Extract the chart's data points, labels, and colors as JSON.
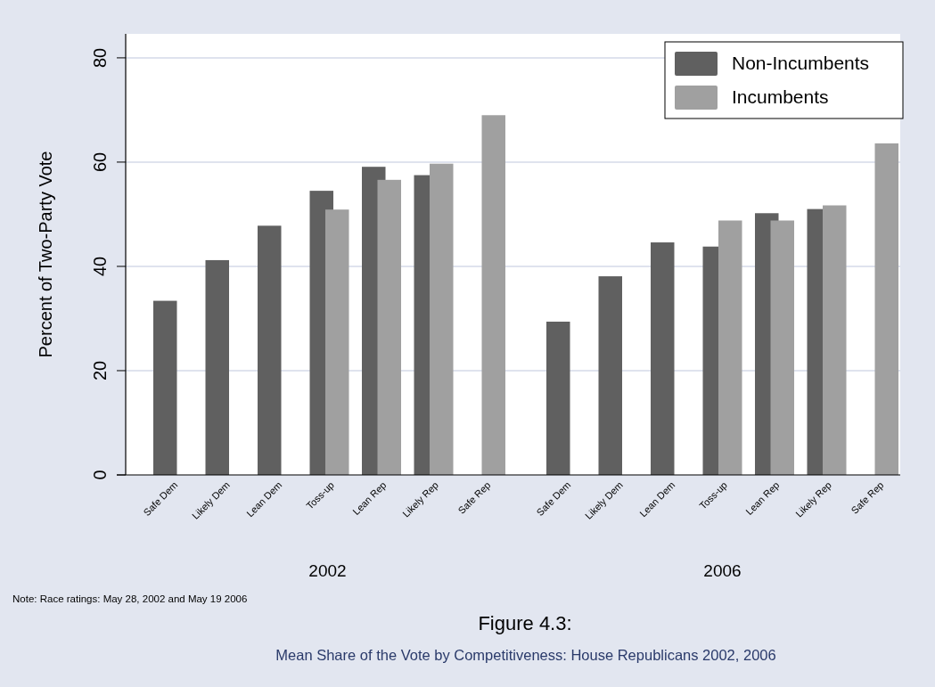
{
  "chart_data": [
    {
      "type": "bar",
      "title": "Figure 4.3:",
      "subtitle": "Mean Share of the Vote by Competitiveness: House Republicans 2002, 2006",
      "xlabel": "2002",
      "ylabel": "Percent of Two-Party Vote",
      "annotations": [
        "Note: Race ratings: May 28, 2002 and May 19 2006"
      ],
      "categories": [
        "Safe Dem",
        "Likely Dem",
        "Lean Dem",
        "Toss-up",
        "Lean Rep",
        "Likely Rep",
        "Safe Rep"
      ],
      "series": [
        {
          "color": "#606060",
          "values": [
            33.4,
            41.2,
            47.8,
            54.5,
            59.1,
            57.5,
            null
          ]
        },
        {
          "color": "#a0a0a0",
          "values": [
            null,
            null,
            null,
            50.9,
            56.6,
            59.7,
            69.0
          ]
        }
      ],
      "ylim": [
        0,
        84.6
      ],
      "yticks": [
        0,
        20,
        40,
        60,
        80
      ],
      "grid": "y"
    },
    {
      "type": "bar",
      "xlabel": "2006",
      "categories": [
        "Safe Dem",
        "Likely Dem",
        "Lean Dem",
        "Toss-up",
        "Lean Rep",
        "Likely Rep",
        "Safe Rep"
      ],
      "series": [
        {
          "name": "Non-Incumbents",
          "color": "#606060",
          "values": [
            29.4,
            38.1,
            44.6,
            43.8,
            50.2,
            51.0,
            null
          ]
        },
        {
          "name": "Incumbents",
          "color": "#a0a0a0",
          "values": [
            null,
            null,
            null,
            48.8,
            48.8,
            51.7,
            63.6
          ]
        }
      ],
      "ylim": [
        0,
        84.6
      ],
      "yticks": [
        0,
        20,
        40,
        60,
        80
      ],
      "grid": "y",
      "legend": "top right",
      "tick_labels": "x"
    }
  ]
}
